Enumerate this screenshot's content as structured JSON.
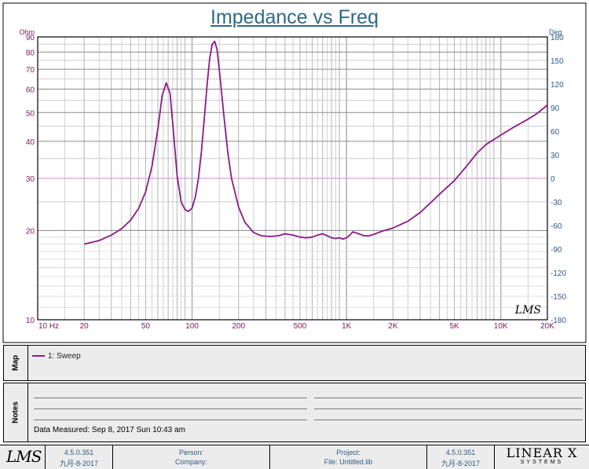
{
  "chart_data": {
    "type": "line",
    "title": "Impedance vs Freq",
    "y_left_unit": "Ohm",
    "y_right_unit": "Deg",
    "x_scale": "log",
    "y_scale": "log",
    "xlim": [
      10,
      20000
    ],
    "ylim": [
      10,
      90
    ],
    "y2lim": [
      -180,
      180
    ],
    "grid": true,
    "x_ticks": [
      {
        "v": 10,
        "label": "10  Hz"
      },
      {
        "v": 20,
        "label": "20"
      },
      {
        "v": 50,
        "label": "50"
      },
      {
        "v": 100,
        "label": "100"
      },
      {
        "v": 200,
        "label": "200"
      },
      {
        "v": 500,
        "label": "500"
      },
      {
        "v": 1000,
        "label": "1K"
      },
      {
        "v": 2000,
        "label": "2K"
      },
      {
        "v": 5000,
        "label": "5K"
      },
      {
        "v": 10000,
        "label": "10K"
      },
      {
        "v": 20000,
        "label": "20K"
      }
    ],
    "y_ticks": [
      {
        "v": 10,
        "label": "10"
      },
      {
        "v": 20,
        "label": "20"
      },
      {
        "v": 30,
        "label": "30"
      },
      {
        "v": 40,
        "label": "40"
      },
      {
        "v": 50,
        "label": "50"
      },
      {
        "v": 60,
        "label": "60"
      },
      {
        "v": 70,
        "label": "70"
      },
      {
        "v": 80,
        "label": "80"
      },
      {
        "v": 90,
        "label": "90"
      }
    ],
    "y2_ticks": [
      180,
      150,
      120,
      90,
      60,
      30,
      0,
      -30,
      -60,
      -90,
      -120,
      -150,
      -180
    ],
    "reference_line": {
      "y": 30,
      "color": "#e0a0dc"
    },
    "series": [
      {
        "name": "1: Sweep",
        "color": "#8b1a89",
        "x": [
          20,
          25,
          30,
          35,
          40,
          45,
          50,
          55,
          60,
          64,
          68,
          72,
          76,
          80,
          85,
          90,
          95,
          100,
          105,
          110,
          115,
          120,
          125,
          130,
          135,
          140,
          145,
          150,
          160,
          170,
          180,
          200,
          220,
          250,
          280,
          320,
          360,
          400,
          450,
          500,
          550,
          600,
          650,
          700,
          750,
          800,
          850,
          900,
          950,
          1000,
          1050,
          1100,
          1200,
          1300,
          1400,
          1500,
          1700,
          2000,
          2500,
          3000,
          3500,
          4000,
          5000,
          6000,
          7000,
          8000,
          10000,
          12000,
          15000,
          17000,
          20000
        ],
        "values": [
          18.0,
          18.5,
          19.3,
          20.3,
          21.7,
          23.7,
          27.0,
          33.0,
          44.0,
          57.0,
          63.0,
          58.0,
          42.0,
          30.5,
          25.0,
          23.5,
          23.2,
          23.8,
          26.0,
          30.0,
          37.0,
          48.0,
          62.0,
          76.0,
          85.0,
          87.0,
          82.0,
          70.0,
          50.0,
          37.0,
          30.0,
          24.0,
          21.3,
          19.7,
          19.2,
          19.1,
          19.2,
          19.5,
          19.3,
          19.0,
          18.9,
          19.0,
          19.3,
          19.5,
          19.2,
          18.9,
          18.8,
          18.9,
          18.7,
          18.9,
          19.3,
          19.8,
          19.5,
          19.2,
          19.2,
          19.4,
          19.9,
          20.4,
          21.5,
          23.0,
          24.8,
          26.5,
          29.5,
          33.0,
          36.5,
          39.0,
          42.0,
          44.5,
          47.5,
          49.5,
          53.0
        ]
      }
    ]
  },
  "map": {
    "label": "Map",
    "legend": [
      {
        "text": "1: Sweep"
      }
    ]
  },
  "notes": {
    "label": "Notes",
    "date_measured": "Data Measured: Sep 8, 2017 Sun 10:43 am"
  },
  "footer": {
    "logo_left": "LMS",
    "version_left": "4.5.0.351",
    "date_left": "九月-8-2017",
    "person_label": "Person:",
    "company_label": "Company:",
    "project_label": "Project:",
    "file_label": "File: Untitled.lib",
    "version_right": "4.5.0.351",
    "date_right": "九月-8-2017",
    "logo_right_big": "LINEAR X",
    "logo_right_small": "SYSTEMS"
  }
}
